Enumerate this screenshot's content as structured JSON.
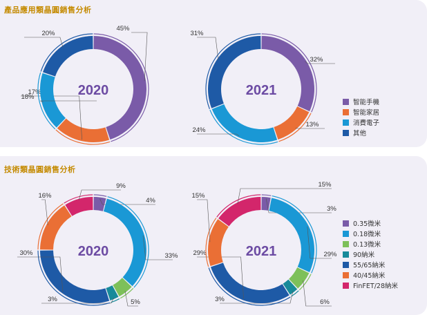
{
  "sections": [
    {
      "title": "產品應用類晶圓銷售分析",
      "legend": [
        {
          "label": "智能手機",
          "color": "#7a5ba8"
        },
        {
          "label": "智能家居",
          "color": "#ea6f35"
        },
        {
          "label": "消費電子",
          "color": "#1a98d5"
        },
        {
          "label": "其他",
          "color": "#1e5aa6"
        }
      ]
    },
    {
      "title": "技術類晶圓銷售分析",
      "legend": [
        {
          "label": "0.35微米",
          "color": "#7a5ba8"
        },
        {
          "label": "0.18微米",
          "color": "#1a98d5"
        },
        {
          "label": "0.13微米",
          "color": "#7dc05a"
        },
        {
          "label": "90納米",
          "color": "#178a9a"
        },
        {
          "label": "55/65納米",
          "color": "#1e5aa6"
        },
        {
          "label": "40/45納米",
          "color": "#ea6f35"
        },
        {
          "label": "FinFET/28納米",
          "color": "#d3266b"
        }
      ]
    }
  ],
  "chart_data": [
    {
      "type": "pie",
      "year_label": "2020",
      "categories": [
        "智能手機",
        "智能家居",
        "消費電子",
        "其他"
      ],
      "values": [
        45,
        17,
        18,
        20
      ],
      "value_labels": [
        "45%",
        "17%",
        "18%",
        "20%"
      ],
      "colors": [
        "#7a5ba8",
        "#ea6f35",
        "#1a98d5",
        "#1e5aa6"
      ]
    },
    {
      "type": "pie",
      "year_label": "2021",
      "categories": [
        "智能手機",
        "智能家居",
        "消費電子",
        "其他"
      ],
      "values": [
        32,
        13,
        24,
        31
      ],
      "value_labels": [
        "32%",
        "13%",
        "24%",
        "31%"
      ],
      "colors": [
        "#7a5ba8",
        "#ea6f35",
        "#1a98d5",
        "#1e5aa6"
      ]
    },
    {
      "type": "pie",
      "year_label": "2020",
      "categories": [
        "0.35微米",
        "0.18微米",
        "0.13微米",
        "90納米",
        "55/65納米",
        "40/45納米",
        "FinFET/28納米"
      ],
      "values": [
        4,
        33,
        5,
        3,
        30,
        16,
        9
      ],
      "value_labels": [
        "4%",
        "33%",
        "5%",
        "3%",
        "30%",
        "16%",
        "9%"
      ],
      "colors": [
        "#7a5ba8",
        "#1a98d5",
        "#7dc05a",
        "#178a9a",
        "#1e5aa6",
        "#ea6f35",
        "#d3266b"
      ]
    },
    {
      "type": "pie",
      "year_label": "2021",
      "categories": [
        "0.35微米",
        "0.18微米",
        "0.13微米",
        "90納米",
        "55/65納米",
        "40/45納米",
        "FinFET/28納米"
      ],
      "values": [
        3,
        29,
        6,
        3,
        29,
        15,
        15
      ],
      "value_labels": [
        "3%",
        "29%",
        "6%",
        "3%",
        "29%",
        "15%",
        "15%"
      ],
      "colors": [
        "#7a5ba8",
        "#1a98d5",
        "#7dc05a",
        "#178a9a",
        "#1e5aa6",
        "#ea6f35",
        "#d3266b"
      ]
    }
  ]
}
